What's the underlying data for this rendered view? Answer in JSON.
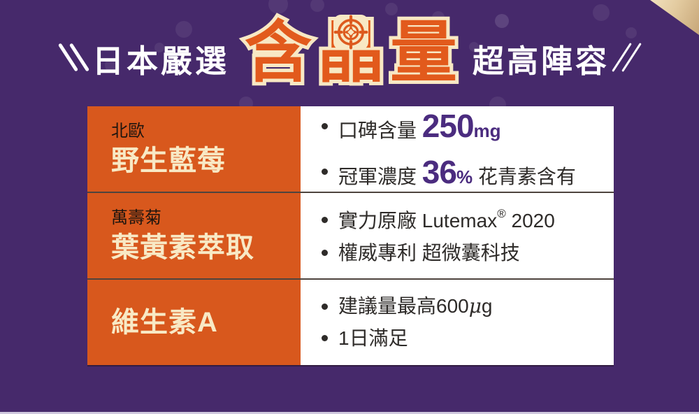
{
  "page": {
    "background_color": "#46296B",
    "accent_orange": "#D8581D",
    "accent_cream": "#F8E9C5",
    "accent_purple_number": "#4B2C7F"
  },
  "header": {
    "prefix": "日本嚴選",
    "highlight": "含晶量",
    "chars": [
      "含",
      "晶",
      "量"
    ],
    "suffix": "超高陣容",
    "highlight_color": "#E25A1C",
    "highlight_outline_color": "#F8E8C4"
  },
  "table": {
    "rows": [
      {
        "tag": "北歐",
        "name": "野生藍莓",
        "bullets": [
          [
            {
              "t": "口碑含量 "
            },
            {
              "t": "250",
              "s": "num"
            },
            {
              "t": "mg",
              "s": "unit"
            }
          ],
          [
            {
              "t": "冠軍濃度 "
            },
            {
              "t": "36",
              "s": "num"
            },
            {
              "t": "%",
              "s": "unit"
            },
            {
              "t": " 花青素含有"
            }
          ]
        ]
      },
      {
        "tag": "萬壽菊",
        "name": "葉黃素萃取",
        "bullets": [
          [
            {
              "t": "實力原廠 Lutemax"
            },
            {
              "t": "®",
              "s": "sup"
            },
            {
              "t": " 2020"
            }
          ],
          [
            {
              "t": "權威專利 超微囊科技"
            }
          ]
        ]
      },
      {
        "tag": "",
        "name": "維生素A",
        "bullets": [
          [
            {
              "t": "建議量最高600"
            },
            {
              "t": "μ",
              "s": "mu"
            },
            {
              "t": "g"
            }
          ],
          [
            {
              "t": "1日滿足"
            }
          ]
        ]
      }
    ]
  }
}
